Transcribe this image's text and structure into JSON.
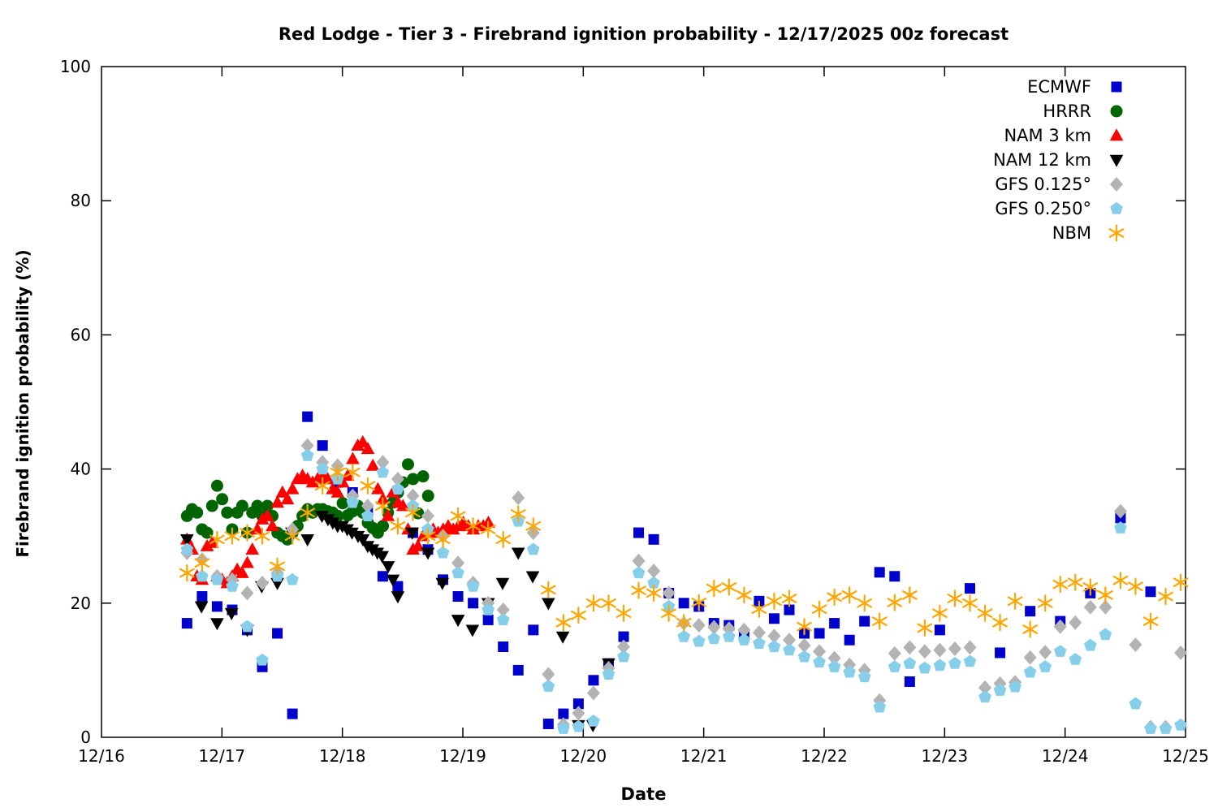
{
  "chart_data": {
    "type": "scatter",
    "title": "Red Lodge - Tier 3 - Firebrand ignition probability - 12/17/2025 00z forecast",
    "xlabel": "Date",
    "ylabel": "Firebrand ignition probability (%)",
    "x_unit": "days since 12/16 00:00 local time",
    "xlim": [
      0,
      9
    ],
    "ylim": [
      0,
      100
    ],
    "x_tick_positions": [
      0,
      1,
      2,
      3,
      4,
      5,
      6,
      7,
      8,
      9
    ],
    "x_tick_labels": [
      "12/16",
      "12/17",
      "12/18",
      "12/19",
      "12/20",
      "12/21",
      "12/22",
      "12/23",
      "12/24",
      "12/25"
    ],
    "y_ticks": [
      0,
      20,
      40,
      60,
      80,
      100
    ],
    "grid": false,
    "legend_position": "top-right-inside",
    "background_color": "#ffffff",
    "series": [
      {
        "name": "ECMWF",
        "marker": "square",
        "color": "#0000cd",
        "segments": [
          {
            "t0": 0.71,
            "dt": 0.125,
            "values": [
              17,
              21,
              19.5,
              19,
              16,
              10.5,
              15.5,
              3.5,
              47.8,
              43.5,
              38,
              36.5,
              33.5,
              24,
              22.5,
              30.5,
              28,
              23.5,
              21,
              20,
              17.5,
              13.5,
              10,
              16,
              2,
              3.5,
              5,
              8.5,
              11,
              15,
              30.5,
              29.5,
              21.5,
              20,
              19.5,
              17,
              16.7,
              15,
              20.3,
              17.7,
              19,
              15.5,
              15.5,
              17,
              14.5,
              17.3,
              24.6,
              24,
              8.3
            ]
          },
          {
            "t0": 6.96,
            "dt": 0.25,
            "values": [
              16,
              22.2,
              12.6,
              18.8,
              17.3,
              21.5,
              32.7,
              21.7
            ]
          }
        ]
      },
      {
        "name": "HRRR",
        "marker": "circle",
        "color": "#006400",
        "segments": [
          {
            "t0": 0.71,
            "dt": 0.0417,
            "values": [
              33,
              34,
              33.5,
              31,
              30.5,
              34.5,
              37.5,
              35.5,
              33.5,
              31,
              33.5,
              34.5,
              30.5,
              33.5,
              34.5,
              33,
              34.5,
              33,
              30.5,
              30,
              29.5,
              30.5,
              31.5,
              33,
              34,
              33.5,
              34,
              34,
              33.7,
              33.5,
              33,
              34.9,
              33.1,
              33.7,
              34.5,
              33.5,
              32,
              31.2,
              30.5,
              31.5,
              33.5,
              35,
              36.5,
              38,
              40.7,
              38.5,
              33.4,
              38.9,
              36
            ]
          }
        ]
      },
      {
        "name": "NAM 3 km",
        "marker": "triangle-up",
        "color": "#ff0000",
        "segments": [
          {
            "t0": 0.71,
            "dt": 0.0417,
            "values": [
              29.5,
              28,
              24,
              23.5,
              28.5,
              29,
              24,
              23.5,
              23,
              24,
              25,
              24.5,
              26,
              28,
              31,
              32.5,
              33,
              31.5,
              35,
              36.5,
              35.5,
              37,
              38.5,
              39,
              38.5,
              38,
              38.5,
              39,
              38.5,
              37,
              36.5,
              38,
              39,
              41.5,
              43.5,
              44,
              43,
              40.5,
              37,
              35.5,
              33,
              36.5,
              35,
              34.5,
              31,
              28,
              28.5,
              30,
              30.5,
              31,
              30.5,
              31,
              31.5,
              31,
              31.5,
              32,
              31.5,
              31,
              31.5,
              31.5,
              32
            ]
          }
        ]
      },
      {
        "name": "NAM 12 km",
        "marker": "triangle-down",
        "color": "#000000",
        "points": [
          [
            0.71,
            29.5
          ],
          [
            0.83,
            19.5
          ],
          [
            0.96,
            17
          ],
          [
            1.08,
            18.5
          ],
          [
            1.21,
            16
          ],
          [
            1.33,
            22.5
          ],
          [
            1.46,
            23
          ],
          [
            1.58,
            30.5
          ],
          [
            1.71,
            29.5
          ],
          [
            1.83,
            33
          ],
          [
            1.88,
            32.5
          ],
          [
            1.92,
            32
          ],
          [
            1.96,
            31.5
          ],
          [
            2.0,
            31.5
          ],
          [
            2.04,
            31
          ],
          [
            2.08,
            30.5
          ],
          [
            2.13,
            30
          ],
          [
            2.17,
            29.5
          ],
          [
            2.21,
            28.5
          ],
          [
            2.25,
            28
          ],
          [
            2.29,
            27.5
          ],
          [
            2.33,
            27
          ],
          [
            2.38,
            25.5
          ],
          [
            2.42,
            23.5
          ],
          [
            2.46,
            21
          ],
          [
            2.58,
            30.5
          ],
          [
            2.71,
            27.5
          ],
          [
            2.83,
            23
          ],
          [
            2.96,
            17.5
          ],
          [
            3.08,
            16
          ],
          [
            3.21,
            20
          ],
          [
            3.33,
            23
          ],
          [
            3.46,
            27.5
          ],
          [
            3.58,
            24
          ],
          [
            3.71,
            20
          ],
          [
            3.83,
            15
          ],
          [
            3.96,
            1.8
          ],
          [
            4.08,
            1.8
          ],
          [
            4.21,
            11
          ]
        ]
      },
      {
        "name": "GFS 0.125°",
        "marker": "diamond",
        "color": "#b3b3b3",
        "segments": [
          {
            "t0": 0.71,
            "dt": 0.125,
            "values": [
              27.5,
              26.5,
              24,
              23.5,
              21.5,
              23,
              24.5,
              31,
              43.5,
              41,
              40.5,
              36,
              34.5,
              41,
              38.5,
              36,
              33,
              30,
              26,
              23,
              20,
              19,
              35.7,
              30.5,
              9.4,
              1.9,
              3.6,
              6.6,
              10.3,
              13.5,
              26.3,
              24.8,
              21.5,
              17,
              16.7,
              16.4,
              16.2,
              16,
              15.6,
              15.1,
              14.5,
              13.7,
              12.8,
              11.8,
              10.8,
              10,
              5.5,
              12.5,
              13.4,
              12.8,
              13,
              13.2,
              13.4,
              7.4,
              8,
              8.2,
              11.9,
              12.7,
              16.5,
              17.1,
              19.4,
              19.4,
              33.7,
              13.8,
              1.5,
              1.5,
              12.6
            ]
          }
        ]
      },
      {
        "name": "GFS 0.250°",
        "marker": "pentagon",
        "color": "#87ceeb",
        "segments": [
          {
            "t0": 0.71,
            "dt": 0.125,
            "values": [
              28,
              24,
              23.5,
              22.5,
              16.5,
              11.5,
              24,
              23.5,
              42,
              40,
              38.5,
              35,
              33,
              39.5,
              37,
              34.5,
              31,
              27.5,
              24.5,
              22.5,
              19,
              17.5,
              32.2,
              28,
              7.6,
              1.3,
              1.6,
              2.4,
              9.4,
              12,
              24.5,
              23,
              19.5,
              15,
              14.3,
              14.7,
              15,
              14.5,
              14,
              13.5,
              13,
              12,
              11.2,
              10.5,
              9.7,
              9,
              4.5,
              10.5,
              11,
              10.3,
              10.7,
              11,
              11.3,
              6,
              7,
              7.5,
              9.7,
              10.5,
              12.8,
              11.6,
              13.7,
              15.3,
              31.2,
              5,
              1.3,
              1.3,
              1.8
            ]
          }
        ]
      },
      {
        "name": "NBM",
        "marker": "asterisk",
        "color": "#ffa500",
        "segments": [
          {
            "t0": 0.71,
            "dt": 0.125,
            "values": [
              24.5,
              26,
              29.5,
              30,
              30.5,
              30,
              25.5,
              30,
              33.5,
              37.5,
              39.5,
              39.5,
              37.5,
              34.5,
              31.5,
              33.5,
              30,
              29.5,
              33,
              31.5,
              31,
              29.5,
              33.3,
              31.5,
              22,
              17.1,
              18.2,
              20,
              20,
              18.5,
              21.9,
              21.5,
              18.5,
              17.1,
              20.1,
              22.2,
              22.4,
              21.2,
              19.1,
              20.3,
              20.7,
              16.5,
              19.1,
              20.9,
              21.2,
              20,
              17.3,
              20.1,
              21.2,
              16.3,
              18.5,
              20.7,
              20,
              18.5,
              17.1,
              20.3,
              16.1,
              20,
              22.8,
              23.1,
              22.4,
              21.2,
              23.4,
              22.5,
              17.3,
              21,
              23.1
            ]
          }
        ]
      }
    ]
  }
}
